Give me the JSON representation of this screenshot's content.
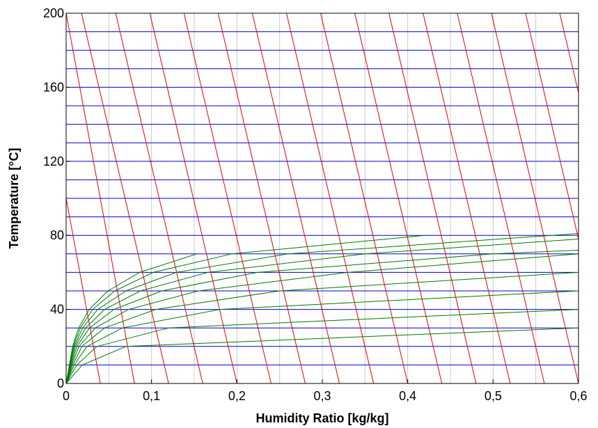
{
  "chart_data": {
    "type": "line",
    "title": "",
    "xlabel": "Humidity Ratio [kg/kg]",
    "ylabel": "Temperature [°C]",
    "xlim": [
      0,
      0.6
    ],
    "ylim": [
      0,
      200
    ],
    "x_ticks": [
      0,
      0.1,
      0.2,
      0.3,
      0.4,
      0.5,
      0.6
    ],
    "x_tick_labels": [
      "0",
      "0,1",
      "0,2",
      "0,3",
      "0,4",
      "0,5",
      "0,6"
    ],
    "y_ticks": [
      0,
      40,
      80,
      120,
      160,
      200
    ],
    "y_tick_labels": [
      "0",
      "40",
      "80",
      "120",
      "160",
      "200"
    ],
    "grid": {
      "vertical_x": [
        0.05,
        0.1,
        0.15,
        0.2,
        0.25,
        0.3,
        0.35,
        0.4,
        0.45,
        0.5,
        0.55
      ],
      "vertical_color": "#c8c8c8"
    },
    "isotherm_series": {
      "color": "#0000c8",
      "temperatures": [
        0,
        10,
        20,
        30,
        40,
        50,
        60,
        70,
        80,
        90,
        100,
        110,
        120,
        130,
        140,
        150,
        160,
        170,
        180,
        190
      ],
      "x_range": [
        0,
        0.6
      ]
    },
    "enthalpy_series": {
      "color": "#e00000",
      "lines": [
        {
          "x": [
            0,
            0.04
          ],
          "y": [
            100,
            0
          ]
        },
        {
          "x": [
            0,
            0.08
          ],
          "y": [
            200,
            0
          ]
        },
        {
          "x": [
            0.018,
            0.12
          ],
          "y": [
            200,
            0
          ]
        },
        {
          "x": [
            0.058,
            0.16
          ],
          "y": [
            200,
            0
          ]
        },
        {
          "x": [
            0.098,
            0.2
          ],
          "y": [
            200,
            0
          ]
        },
        {
          "x": [
            0.138,
            0.24
          ],
          "y": [
            200,
            0
          ]
        },
        {
          "x": [
            0.178,
            0.28
          ],
          "y": [
            200,
            0
          ]
        },
        {
          "x": [
            0.218,
            0.32
          ],
          "y": [
            200,
            0
          ]
        },
        {
          "x": [
            0.258,
            0.36
          ],
          "y": [
            200,
            0
          ]
        },
        {
          "x": [
            0.298,
            0.4
          ],
          "y": [
            200,
            0
          ]
        },
        {
          "x": [
            0.338,
            0.44
          ],
          "y": [
            200,
            0
          ]
        },
        {
          "x": [
            0.378,
            0.48
          ],
          "y": [
            200,
            0
          ]
        },
        {
          "x": [
            0.418,
            0.52
          ],
          "y": [
            200,
            0
          ]
        },
        {
          "x": [
            0.458,
            0.56
          ],
          "y": [
            200,
            0
          ]
        },
        {
          "x": [
            0.498,
            0.6
          ],
          "y": [
            200,
            0
          ]
        },
        {
          "x": [
            0.538,
            0.6
          ],
          "y": [
            200,
            78
          ]
        },
        {
          "x": [
            0.578,
            0.6
          ],
          "y": [
            200,
            157
          ]
        }
      ]
    },
    "rh_series": {
      "color": "#007800",
      "curves": [
        {
          "x": [
            0,
            0.0038,
            0.0076,
            0.0147,
            0.027,
            0.049,
            0.086,
            0.153
          ],
          "y": [
            0,
            10,
            20,
            30,
            40,
            50,
            60,
            70
          ]
        },
        {
          "x": [
            0,
            0.0041,
            0.0085,
            0.0167,
            0.031,
            0.057,
            0.102,
            0.194,
            0.42
          ],
          "y": [
            0,
            10,
            20,
            30,
            40,
            50,
            60,
            70,
            80
          ]
        },
        {
          "x": [
            0,
            0.0045,
            0.0095,
            0.0194,
            0.037,
            0.07,
            0.129,
            0.26,
            0.6
          ],
          "y": [
            0,
            10,
            20,
            30,
            40,
            50,
            60,
            70,
            81
          ]
        },
        {
          "x": [
            0,
            0.005,
            0.0108,
            0.0228,
            0.045,
            0.087,
            0.166,
            0.35,
            0.6
          ],
          "y": [
            0,
            10,
            20,
            30,
            40,
            50,
            60,
            70,
            78
          ]
        },
        {
          "x": [
            0,
            0.0057,
            0.0125,
            0.0275,
            0.056,
            0.112,
            0.224,
            0.5,
            0.6
          ],
          "y": [
            0,
            10,
            20,
            30,
            40,
            50,
            60,
            70,
            72
          ]
        },
        {
          "x": [
            0,
            0.0065,
            0.0149,
            0.0342,
            0.073,
            0.155,
            0.33,
            0.6
          ],
          "y": [
            0,
            10,
            20,
            30,
            40,
            50,
            60,
            70
          ]
        },
        {
          "x": [
            0,
            0.0077,
            0.0185,
            0.045,
            0.105,
            0.25,
            0.6
          ],
          "y": [
            0,
            10,
            20,
            30,
            40,
            50,
            60
          ]
        },
        {
          "x": [
            0,
            0.0095,
            0.0244,
            0.066,
            0.18,
            0.6
          ],
          "y": [
            0,
            10,
            20,
            30,
            40,
            50
          ]
        },
        {
          "x": [
            0,
            0.0125,
            0.036,
            0.12,
            0.6
          ],
          "y": [
            0,
            10,
            20,
            30,
            40
          ]
        },
        {
          "x": [
            0,
            0.019,
            0.07,
            0.6
          ],
          "y": [
            0,
            10,
            20,
            30
          ]
        }
      ]
    }
  }
}
